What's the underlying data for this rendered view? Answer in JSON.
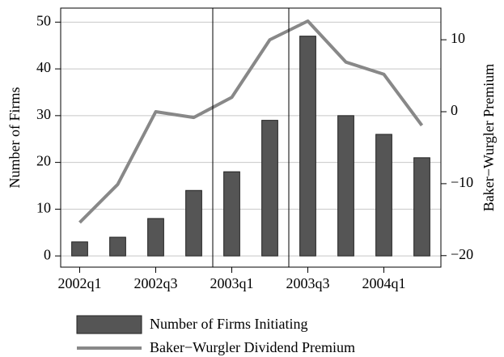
{
  "chart_data": {
    "type": "bar-line",
    "categories": [
      "2002q1",
      null,
      "2002q3",
      null,
      "2003q1",
      null,
      "2003q3",
      null,
      "2004q1",
      null
    ],
    "series": [
      {
        "name": "Number of Firms Initiating",
        "type": "bar",
        "color": "#555555",
        "values": [
          3,
          4,
          8,
          14,
          18,
          29,
          47,
          30,
          26,
          21
        ]
      },
      {
        "name": "Baker−Wurgler Dividend Premium",
        "type": "line",
        "axis": "y2",
        "color": "#888888",
        "values": [
          -15.4,
          -10.1,
          0,
          -0.8,
          2.0,
          10,
          12.6,
          6.9,
          5.2,
          -1.9
        ]
      }
    ],
    "ylabel": "Number of Firms",
    "y2label": "Baker−Wurgler Premium",
    "ylim": [
      -2.4,
      53
    ],
    "yticks": [
      0,
      10,
      20,
      30,
      40,
      50
    ],
    "y2lim": [
      -21.6,
      14.4
    ],
    "y2ticks": [
      {
        "value": -20,
        "label": "−20"
      },
      {
        "value": -10,
        "label": "−10"
      },
      0,
      10
    ],
    "grid": true
  }
}
